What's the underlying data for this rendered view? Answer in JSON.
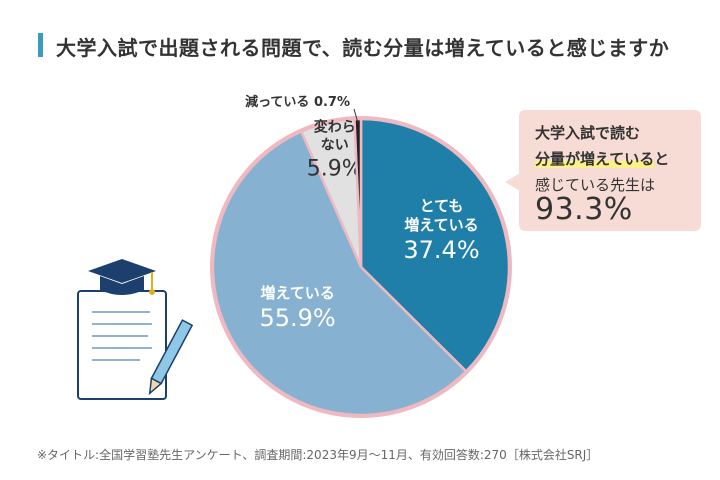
{
  "title": "大学入試で出題される問題で、読む分量は増えていると感じますか",
  "chart_data": {
    "type": "pie",
    "slices": [
      {
        "label_lines": [
          "とても",
          "増えている"
        ],
        "value": 37.4,
        "value_text": "37.4%",
        "color": "#1f7fa9",
        "text_color": "#ffffff"
      },
      {
        "label_lines": [
          "増えている"
        ],
        "value": 55.9,
        "value_text": "55.9%",
        "color": "#86b1d1",
        "text_color": "#ffffff"
      },
      {
        "label_lines": [
          "変わら",
          "ない"
        ],
        "value": 5.9,
        "value_text": "5.9%",
        "color": "#e1e1e1",
        "text_color": "#333333"
      },
      {
        "label_lines": [
          "減っている"
        ],
        "value": 0.7,
        "value_text": "0.7%",
        "color": "#222222",
        "text_color": "#333333"
      }
    ],
    "border_color": "#efb9c1"
  },
  "callout": {
    "line1": "大学入試で読む",
    "line2_highlight": "分量が増えている",
    "line2_rest": "と",
    "line3": "感じている先生は",
    "value": "93.3%"
  },
  "footnote": "※タイトル:全国学習塾先生アンケート、調査期間:2023年9月～11月、有効回答数:270［株式会社SRJ］"
}
